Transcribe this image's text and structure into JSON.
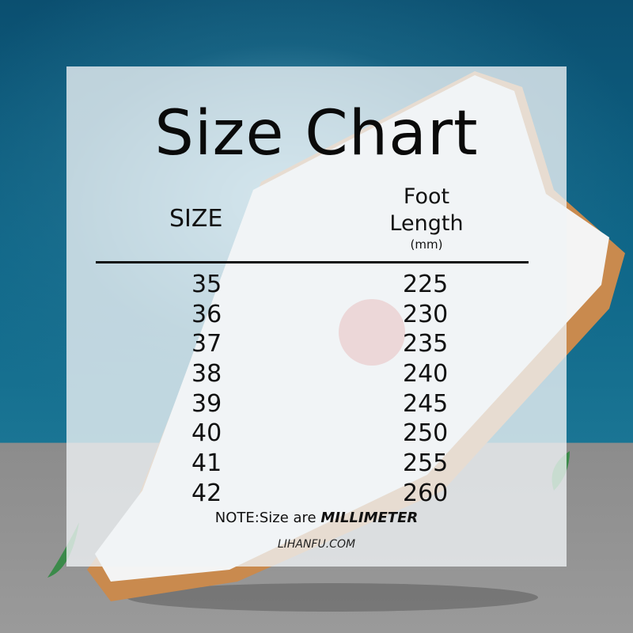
{
  "title": "Size Chart",
  "headers": {
    "size": "SIZE",
    "foot_line1": "Foot",
    "foot_line2": "Length",
    "foot_unit": "(mm)"
  },
  "rows": [
    {
      "size": "35",
      "length": "225"
    },
    {
      "size": "36",
      "length": "230"
    },
    {
      "size": "37",
      "length": "235"
    },
    {
      "size": "38",
      "length": "240"
    },
    {
      "size": "39",
      "length": "245"
    },
    {
      "size": "40",
      "length": "250"
    },
    {
      "size": "41",
      "length": "255"
    },
    {
      "size": "42",
      "length": "260"
    }
  ],
  "note": {
    "prefix": "NOTE:Size are ",
    "emphasis": "MILLIMETER"
  },
  "website": "LIHANFU.COM",
  "colors": {
    "background_top": "#0e6688",
    "floor": "#8c8c8c",
    "sole": "#c98a4e"
  }
}
